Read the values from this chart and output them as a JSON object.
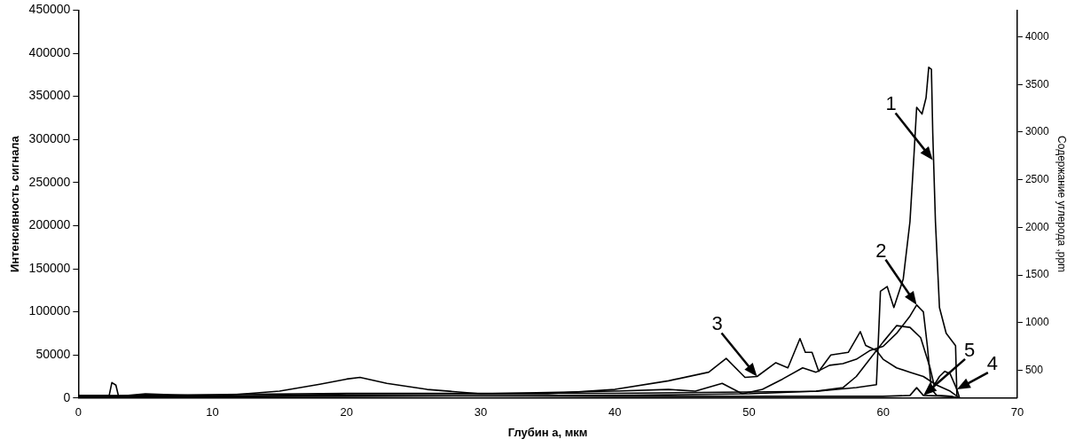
{
  "chart_data": {
    "type": "line",
    "xlabel": "Глубин а, мкм",
    "ylabel": "Интенсивность сигнала",
    "y2label": "Содержание углерода ,ppm",
    "xlim": [
      0,
      70
    ],
    "xticks": [
      0,
      10,
      20,
      30,
      40,
      50,
      60,
      70
    ],
    "ylim": [
      0,
      450000
    ],
    "yticks": [
      0,
      50000,
      100000,
      150000,
      200000,
      250000,
      300000,
      350000,
      400000,
      450000
    ],
    "y2lim": [
      210,
      4280
    ],
    "y2ticks": [
      500,
      1000,
      1500,
      2000,
      2500,
      3000,
      3500,
      4000
    ],
    "grid": false,
    "legend": false,
    "marker": "none",
    "line_style": "solid",
    "series": [
      {
        "color": "#000000",
        "axis": "y2",
        "x": [
          0,
          20,
          40,
          55,
          58,
          59.5,
          59.7,
          59.8,
          60.3,
          60.8,
          61.5,
          62.0,
          62.3,
          62.5,
          62.9,
          63.2,
          63.4,
          63.6,
          63.7,
          63.9,
          64.2,
          64.7,
          65.4,
          65.5
        ],
        "values": [
          230,
          260,
          260,
          280,
          320,
          350,
          1000,
          1330,
          1380,
          1160,
          1460,
          2060,
          2760,
          3260,
          3190,
          3360,
          3680,
          3660,
          2990,
          2060,
          1160,
          890,
          760,
          230
        ]
      },
      {
        "color": "#000000",
        "x": [
          0,
          10,
          20,
          30,
          40,
          44,
          46,
          48,
          49.5,
          51,
          52.5,
          54,
          55,
          56,
          57,
          58,
          59,
          60,
          61,
          62,
          62.5,
          63,
          63.3,
          63.6,
          64,
          65,
          65.7
        ],
        "values": [
          3000,
          1000,
          5000,
          5000,
          8000,
          10000,
          8000,
          17000,
          5000,
          10000,
          22000,
          35000,
          30000,
          38000,
          40000,
          45000,
          55000,
          60000,
          75000,
          95000,
          108000,
          100000,
          60000,
          10000,
          3000,
          2000,
          0
        ]
      },
      {
        "color": "#000000",
        "x": [
          0,
          2.3,
          2.5,
          2.8,
          3,
          5,
          10,
          15,
          18,
          20,
          21,
          23,
          26,
          30,
          35,
          40,
          44,
          47,
          48.3,
          49.7,
          50.6,
          52,
          52.9,
          53.8,
          54.2,
          54.7,
          55.2,
          56.1,
          57.4,
          58.3,
          58.7,
          59.5,
          60,
          61,
          62,
          63,
          64,
          65,
          65.7
        ],
        "values": [
          3000,
          3000,
          18000,
          15000,
          2000,
          5000,
          2000,
          8000,
          16000,
          22000,
          24000,
          17000,
          10000,
          5000,
          5000,
          10000,
          20000,
          30000,
          46000,
          24000,
          25000,
          41000,
          35000,
          69000,
          53000,
          53000,
          31000,
          50000,
          53000,
          77000,
          61000,
          55000,
          45000,
          35000,
          30000,
          25000,
          15000,
          8000,
          0
        ]
      },
      {
        "color": "#000000",
        "x": [
          0,
          20,
          40,
          50,
          55,
          57,
          58,
          59,
          60,
          61,
          62,
          62.8,
          63.5,
          63.8,
          64.2,
          64.6,
          65,
          65.5,
          65.7
        ],
        "values": [
          1000,
          2000,
          3000,
          5000,
          8000,
          12000,
          25000,
          45000,
          65000,
          84000,
          82000,
          70000,
          35000,
          15000,
          25000,
          31000,
          28000,
          10000,
          0
        ]
      },
      {
        "color": "#000000",
        "x": [
          0,
          20,
          40,
          55,
          60,
          62,
          62.5,
          63,
          65,
          65.5
        ],
        "values": [
          2000,
          3000,
          2000,
          2000,
          2000,
          3000,
          12000,
          3000,
          2000,
          0
        ]
      }
    ],
    "annotations": [
      {
        "text": "1",
        "x": 63.7,
        "y": 276000
      },
      {
        "text": "2",
        "x": 62.5,
        "y": 108000
      },
      {
        "text": "3",
        "x": 50.6,
        "y": 25000
      },
      {
        "text": "4",
        "x": 65.5,
        "y": 10000
      },
      {
        "text": "5",
        "x": 63,
        "y": 3000
      }
    ]
  }
}
